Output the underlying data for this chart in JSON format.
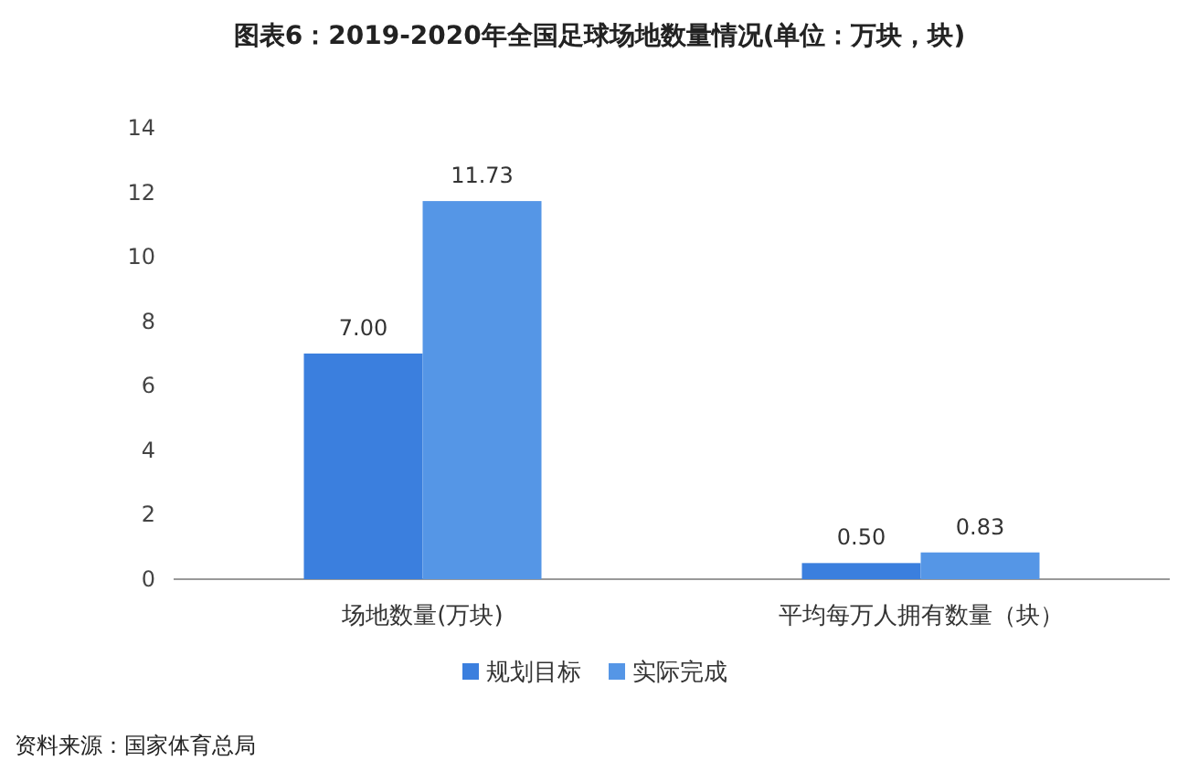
{
  "chart_data": {
    "type": "bar",
    "title": "图表6：2019-2020年全国足球场地数量情况(单位：万块，块)",
    "categories": [
      "场地数量(万块)",
      "平均每万人拥有数量（块）"
    ],
    "series": [
      {
        "name": "规划目标",
        "color": "#3b7fde",
        "values": [
          7.0,
          0.5
        ],
        "value_labels": [
          "7.00",
          "0.50"
        ]
      },
      {
        "name": "实际完成",
        "color": "#5596e6",
        "values": [
          11.73,
          0.83
        ],
        "value_labels": [
          "11.73",
          "0.83"
        ]
      }
    ],
    "ylim": [
      0,
      14
    ],
    "yticks": [
      0,
      2,
      4,
      6,
      8,
      10,
      12,
      14
    ],
    "grid": false,
    "legend": "bottom",
    "annotations": [
      "资料来源：国家体育总局"
    ]
  }
}
